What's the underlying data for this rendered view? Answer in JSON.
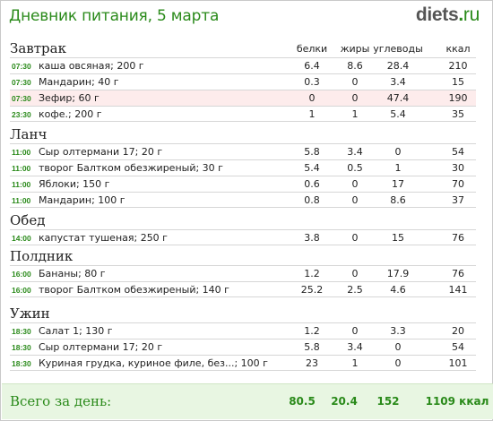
{
  "header": {
    "title": "Дневник питания, 5 марта",
    "logo_main": "diets",
    "logo_dot": ".",
    "logo_tld": "ru"
  },
  "columns": {
    "protein": "белки",
    "fat": "жиры",
    "carbs": "углеводы",
    "kcal": "ккал"
  },
  "meals": [
    {
      "name": "Завтрак",
      "items": [
        {
          "time": "07:30",
          "food": "каша овсяная; 200 г",
          "protein": "6.4",
          "fat": "8.6",
          "carbs": "28.4",
          "kcal": "210"
        },
        {
          "time": "07:30",
          "food": "Мандарин; 40 г",
          "protein": "0.3",
          "fat": "0",
          "carbs": "3.4",
          "kcal": "15"
        },
        {
          "time": "07:30",
          "food": "Зефир; 60 г",
          "protein": "0",
          "fat": "0",
          "carbs": "47.4",
          "kcal": "190",
          "highlight": true
        },
        {
          "time": "23:30",
          "food": "кофе.; 200 г",
          "protein": "1",
          "fat": "1",
          "carbs": "5.4",
          "kcal": "35"
        }
      ]
    },
    {
      "name": "Ланч",
      "items": [
        {
          "time": "11:00",
          "food": "Сыр олтермани 17; 20 г",
          "protein": "5.8",
          "fat": "3.4",
          "carbs": "0",
          "kcal": "54"
        },
        {
          "time": "11:00",
          "food": "творог Балтком обезжиреный; 30 г",
          "protein": "5.4",
          "fat": "0.5",
          "carbs": "1",
          "kcal": "30"
        },
        {
          "time": "11:00",
          "food": "Яблоки; 150 г",
          "protein": "0.6",
          "fat": "0",
          "carbs": "17",
          "kcal": "70"
        },
        {
          "time": "11:00",
          "food": "Мандарин; 100 г",
          "protein": "0.8",
          "fat": "0",
          "carbs": "8.6",
          "kcal": "37"
        }
      ]
    },
    {
      "name": "Обед",
      "items": [
        {
          "time": "14:00",
          "food": "капустат тушеная; 250 г",
          "protein": "3.8",
          "fat": "0",
          "carbs": "15",
          "kcal": "76"
        }
      ]
    },
    {
      "name": "Полдник",
      "items": [
        {
          "time": "16:00",
          "food": "Бананы; 80 г",
          "protein": "1.2",
          "fat": "0",
          "carbs": "17.9",
          "kcal": "76"
        },
        {
          "time": "16:00",
          "food": "творог Балтком обезжиреный; 140 г",
          "protein": "25.2",
          "fat": "2.5",
          "carbs": "4.6",
          "kcal": "141"
        }
      ]
    },
    {
      "name": "Ужин",
      "items": [
        {
          "time": "18:30",
          "food": "Салат 1; 130 г",
          "protein": "1.2",
          "fat": "0",
          "carbs": "3.3",
          "kcal": "20"
        },
        {
          "time": "18:30",
          "food": "Сыр олтермани 17; 20 г",
          "protein": "5.8",
          "fat": "3.4",
          "carbs": "0",
          "kcal": "54"
        },
        {
          "time": "18:30",
          "food": "Куриная грудка, куриное филе, без...; 100 г",
          "protein": "23",
          "fat": "1",
          "carbs": "0",
          "kcal": "101"
        }
      ]
    }
  ],
  "totals": {
    "label": "Всего за день:",
    "protein": "80.5",
    "fat": "20.4",
    "carbs": "152",
    "kcal": "1109 ккал"
  },
  "colors": {
    "accent": "#2a8a1a",
    "highlight_row": "#fdecec",
    "footer_bg": "#e8f6e2"
  }
}
